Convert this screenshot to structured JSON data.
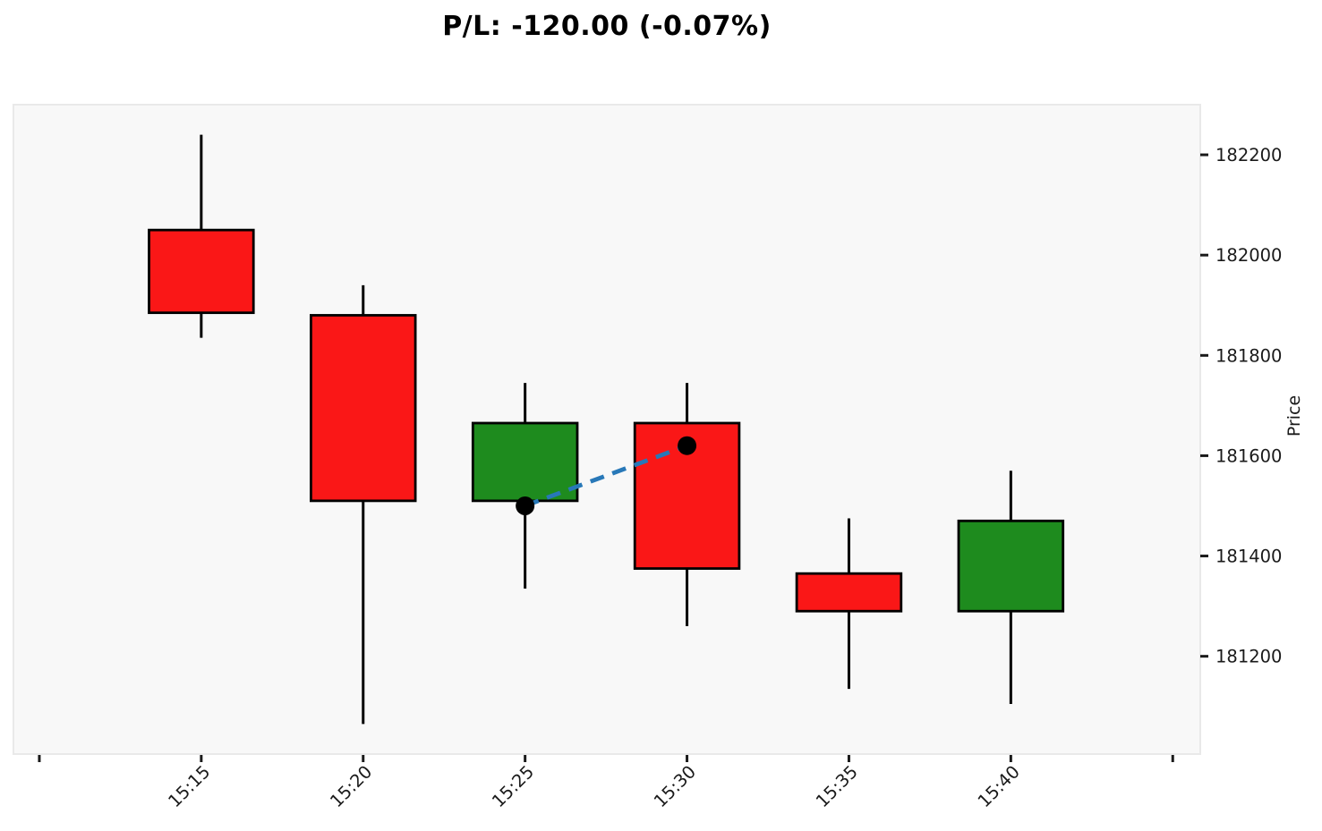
{
  "title": "P/L: -120.00 (-0.07%)",
  "pnl": {
    "value": "-120.00",
    "percent": "-0.07%"
  },
  "chart_data": {
    "type": "candlestick",
    "title": "P/L: -120.00 (-0.07%)",
    "xlabel": "",
    "ylabel": "Price",
    "x_labels": [
      "15:15",
      "15:20",
      "15:25",
      "15:30",
      "15:35",
      "15:40"
    ],
    "candles": [
      {
        "time": "15:15",
        "open": 182050,
        "high": 182240,
        "low": 181835,
        "close": 181885,
        "direction": "down"
      },
      {
        "time": "15:20",
        "open": 181880,
        "high": 181940,
        "low": 181065,
        "close": 181510,
        "direction": "down"
      },
      {
        "time": "15:25",
        "open": 181510,
        "high": 181745,
        "low": 181335,
        "close": 181665,
        "direction": "up"
      },
      {
        "time": "15:30",
        "open": 181665,
        "high": 181745,
        "low": 181260,
        "close": 181375,
        "direction": "down"
      },
      {
        "time": "15:35",
        "open": 181365,
        "high": 181475,
        "low": 181135,
        "close": 181290,
        "direction": "down"
      },
      {
        "time": "15:40",
        "open": 181290,
        "high": 181570,
        "low": 181105,
        "close": 181470,
        "direction": "up"
      }
    ],
    "trade": {
      "entry": {
        "time": "15:25",
        "price": 181500
      },
      "exit": {
        "time": "15:30",
        "price": 181620
      },
      "line_style": "dashed",
      "marker": "circle"
    },
    "y_ticks": [
      181200,
      181400,
      181600,
      181800,
      182000,
      182200
    ],
    "ylim": [
      181005,
      182300
    ],
    "xlim": [
      -1.16,
      6.17
    ],
    "grid": false,
    "legend": "none",
    "colors": {
      "up": "#1e8b1e",
      "down": "#fa1717",
      "candle_edge": "#000000",
      "wick": "#000000",
      "trade_line": "#2878b8",
      "trade_marker": "#000000",
      "plot_bg": "#f8f8f8",
      "plot_border": "#e9e9e9",
      "figure_bg": "#ffffff",
      "tick_text": "#1a1a1a",
      "title_text": "#000000"
    }
  }
}
